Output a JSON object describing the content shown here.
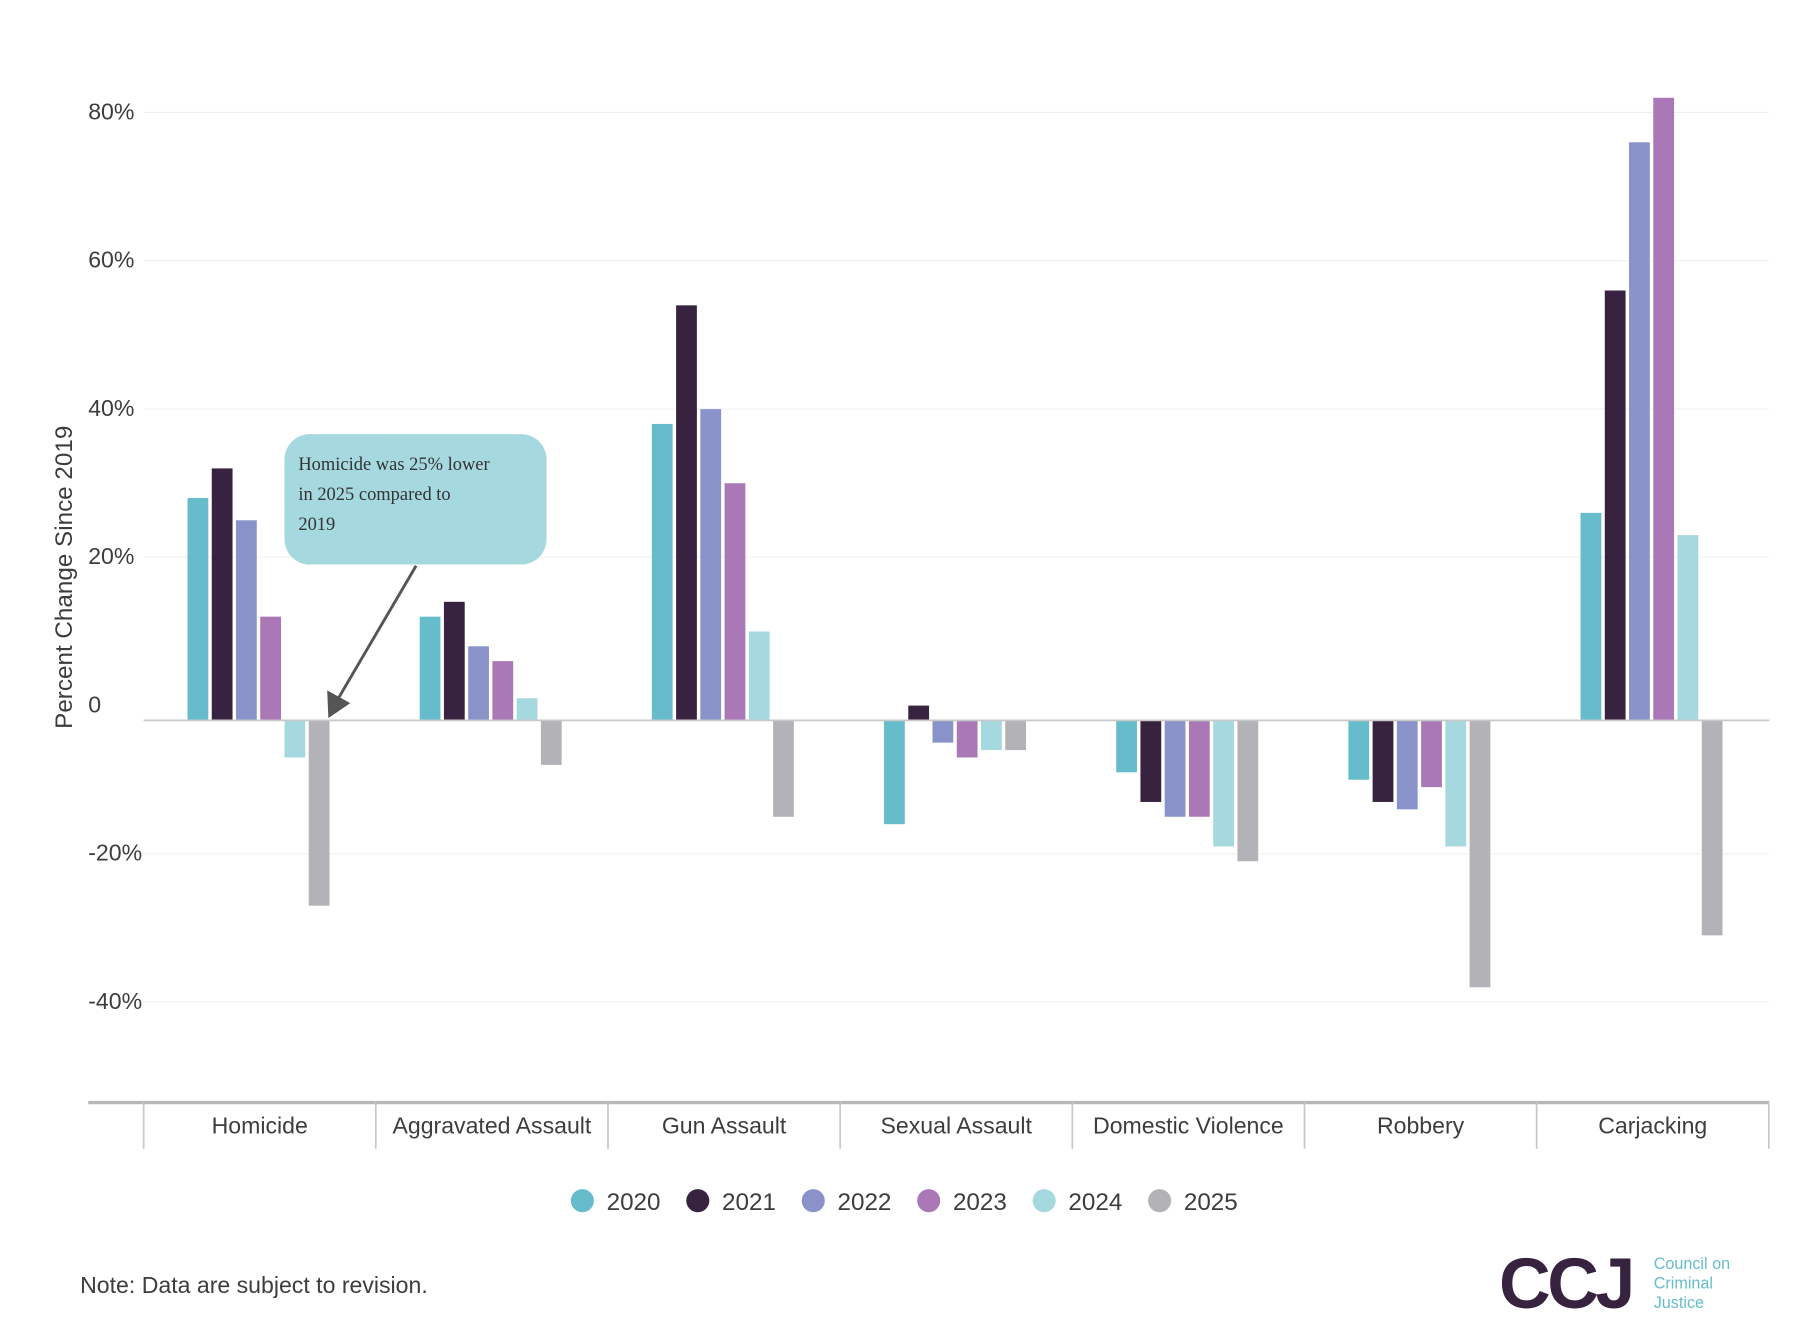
{
  "chart_data": {
    "type": "bar",
    "ylabel": "Percent Change Since 2019",
    "xlabel": "",
    "ylim": [
      -40,
      80
    ],
    "yticks": [
      80,
      60,
      40,
      20,
      0,
      -20,
      -40
    ],
    "ytick_labels": [
      "80%",
      "60%",
      "40%",
      "20%",
      "0",
      "-20%",
      "-40%"
    ],
    "grid": true,
    "legend_position": "bottom-center",
    "categories": [
      "Homicide",
      "Aggravated Assault",
      "Gun Assault",
      "Sexual Assault",
      "Domestic Violence",
      "Robbery",
      "Carjacking"
    ],
    "series": [
      {
        "name": "2020",
        "color": "#67bccb",
        "values": [
          30,
          14,
          40,
          -14,
          -7,
          -8,
          28
        ]
      },
      {
        "name": "2021",
        "color": "#372340",
        "values": [
          34,
          16,
          56,
          2,
          -11,
          -11,
          58
        ]
      },
      {
        "name": "2022",
        "color": "#8a93c9",
        "values": [
          27,
          10,
          42,
          -3,
          -13,
          -12,
          78
        ]
      },
      {
        "name": "2023",
        "color": "#ab78b7",
        "values": [
          14,
          8,
          32,
          -5,
          -13,
          -9,
          84
        ]
      },
      {
        "name": "2024",
        "color": "#a6d8e0",
        "values": [
          -5,
          3,
          12,
          -4,
          -17,
          -17,
          25
        ]
      },
      {
        "name": "2025",
        "color": "#b3b3b7",
        "values": [
          -25,
          -6,
          -13,
          -4,
          -19,
          -36,
          -29
        ]
      }
    ],
    "annotation": {
      "lines": [
        "Homicide was 25% lower",
        "in 2025 compared to",
        "2019"
      ],
      "target_category": "Homicide",
      "target_series": "2025"
    }
  },
  "note": "Note: Data are subject to revision.",
  "logo": {
    "mark": "CCJ",
    "lines": [
      "Council on",
      "Criminal",
      "Justice"
    ]
  }
}
